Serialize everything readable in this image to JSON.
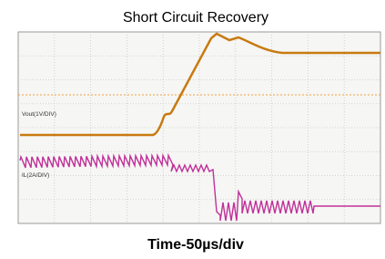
{
  "title": "Short Circuit Recovery",
  "screen": {
    "vout_label": "Vout(1V/DIV)",
    "il_label": "IL(2A/DIV)"
  },
  "x_label": "Time-50µs/div"
}
